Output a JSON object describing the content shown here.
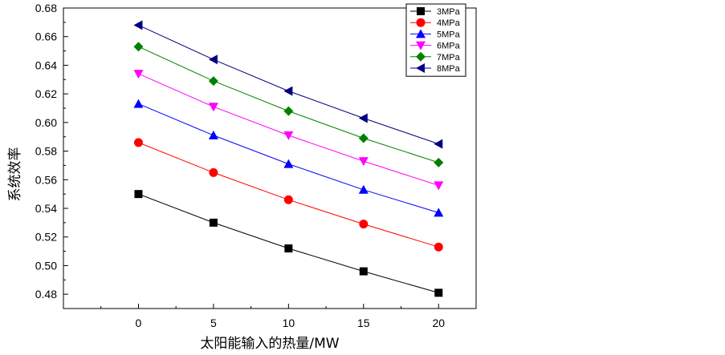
{
  "chart_data": {
    "type": "line",
    "title": "",
    "xlabel": "太阳能输入的热量/MW",
    "ylabel": "系统效率",
    "x": [
      0,
      5,
      10,
      15,
      20
    ],
    "xticks": [
      "0",
      "5",
      "10",
      "15",
      "20"
    ],
    "xlim": [
      -5,
      22.5
    ],
    "ylim": [
      0.47,
      0.68
    ],
    "yticks": [
      "0.48",
      "0.50",
      "0.52",
      "0.54",
      "0.56",
      "0.58",
      "0.60",
      "0.62",
      "0.64",
      "0.66",
      "0.68"
    ],
    "legend_position": "top-right",
    "grid": false,
    "series": [
      {
        "name": "3MPa",
        "values": [
          0.55,
          0.53,
          0.512,
          0.496,
          0.481
        ],
        "color": "#000000",
        "marker": "square"
      },
      {
        "name": "4MPa",
        "values": [
          0.586,
          0.565,
          0.546,
          0.529,
          0.513
        ],
        "color": "#ff0000",
        "marker": "circle"
      },
      {
        "name": "5MPa",
        "values": [
          0.613,
          0.591,
          0.571,
          0.553,
          0.537
        ],
        "color": "#0000ff",
        "marker": "triangle-up"
      },
      {
        "name": "6MPa",
        "values": [
          0.634,
          0.611,
          0.591,
          0.573,
          0.556
        ],
        "color": "#ff00ff",
        "marker": "triangle-down"
      },
      {
        "name": "7MPa",
        "values": [
          0.653,
          0.629,
          0.608,
          0.589,
          0.572
        ],
        "color": "#008000",
        "marker": "diamond"
      },
      {
        "name": "8MPa",
        "values": [
          0.668,
          0.644,
          0.622,
          0.603,
          0.585
        ],
        "color": "#000080",
        "marker": "triangle-left"
      }
    ]
  }
}
